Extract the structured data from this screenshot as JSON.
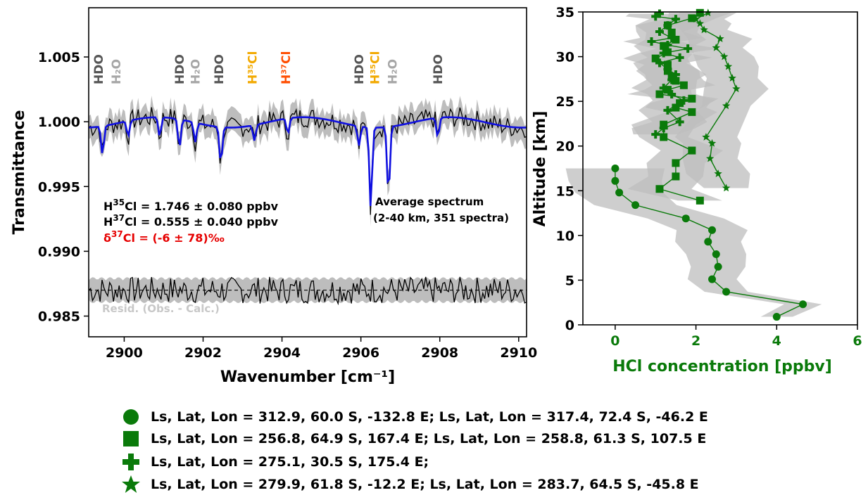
{
  "colors": {
    "fit": "#1010e0",
    "obs": "#000000",
    "band": "#bdbdbd",
    "hcl": "#0a7a0a",
    "hdo": "#555555",
    "h2o": "#a6a6a6",
    "h35cl": "#f2a900",
    "h37cl": "#ff4d00",
    "delta": "#e60000",
    "resid_label": "#c8c8c8"
  },
  "chart_data": [
    {
      "type": "line",
      "name_hint": "spectrum",
      "xlabel": "Wavenumber [cm⁻¹]",
      "ylabel": "Transmittance",
      "xlim": [
        2899.1,
        2910.2
      ],
      "ylim": [
        0.9834,
        1.0088
      ],
      "xticks": [
        2900,
        2902,
        2904,
        2906,
        2908,
        2910
      ],
      "yticks": [
        0.985,
        0.99,
        0.995,
        1.0,
        1.005
      ],
      "ytick_labels": [
        "0.985",
        "0.990",
        "0.995",
        "1.000",
        "1.005"
      ],
      "line_labels": [
        {
          "text": "HDO",
          "x": 2899.35,
          "species": "hdo"
        },
        {
          "text": "H₂O",
          "x": 2899.8,
          "species": "h2o"
        },
        {
          "text": "HDO",
          "x": 2901.4,
          "species": "hdo"
        },
        {
          "text": "H₂O",
          "x": 2901.8,
          "species": "h2o"
        },
        {
          "text": "HDO",
          "x": 2902.4,
          "species": "hdo"
        },
        {
          "text": "H³⁵Cl",
          "x": 2903.25,
          "species": "h35cl"
        },
        {
          "text": "H³⁷Cl",
          "x": 2904.1,
          "species": "h37cl"
        },
        {
          "text": "HDO",
          "x": 2905.95,
          "species": "hdo"
        },
        {
          "text": "H³⁵Cl",
          "x": 2906.35,
          "species": "h35cl"
        },
        {
          "text": "H₂O",
          "x": 2906.8,
          "species": "h2o"
        },
        {
          "text": "HDO",
          "x": 2907.95,
          "species": "hdo"
        }
      ],
      "features": [
        {
          "x": 2899.45,
          "depth": 0.0022,
          "width": 0.05
        },
        {
          "x": 2900.1,
          "depth": 0.0012,
          "width": 0.05
        },
        {
          "x": 2900.9,
          "depth": 0.0015,
          "width": 0.05
        },
        {
          "x": 2901.4,
          "depth": 0.0022,
          "width": 0.05
        },
        {
          "x": 2901.8,
          "depth": 0.0015,
          "width": 0.05
        },
        {
          "x": 2902.45,
          "depth": 0.0028,
          "width": 0.05
        },
        {
          "x": 2903.3,
          "depth": 0.0012,
          "width": 0.05
        },
        {
          "x": 2904.15,
          "depth": 0.0012,
          "width": 0.05
        },
        {
          "x": 2905.95,
          "depth": 0.0015,
          "width": 0.05
        },
        {
          "x": 2906.25,
          "depth": 0.0062,
          "width": 0.05
        },
        {
          "x": 2906.7,
          "depth": 0.0052,
          "width": 0.05
        },
        {
          "x": 2907.95,
          "depth": 0.0015,
          "width": 0.05
        }
      ],
      "residual_offset": 0.987,
      "annotations": {
        "h35_prefix": "H",
        "h35_sup": "35",
        "h35_rest": "Cl = 1.746 ± 0.080 ppbv",
        "h37_prefix": "H",
        "h37_sup": "37",
        "h37_rest": "Cl = 0.555 ± 0.040 ppbv",
        "delta_prefix": "δ",
        "delta_sup": "37",
        "delta_rest": "Cl = (-6 ± 78)‰",
        "avg_line1": "Average spectrum",
        "avg_line2": "(2-40 km, 351 spectra)",
        "resid": "Resid. (Obs. - Calc.)"
      }
    },
    {
      "type": "line",
      "name_hint": "profile",
      "xlabel": "HCl concentration [ppbv]",
      "ylabel": "Altitude [km]",
      "xlim": [
        -0.8,
        6
      ],
      "ylim": [
        0,
        35
      ],
      "xticks": [
        0,
        2,
        4,
        6
      ],
      "yticks": [
        0,
        5,
        10,
        15,
        20,
        25,
        30,
        35
      ],
      "series": [
        {
          "marker": "circle",
          "x": [
            4.0,
            4.65,
            2.75,
            2.4,
            2.55,
            2.5,
            2.3,
            2.4,
            1.75,
            0.5,
            0.1,
            0.0,
            0.0
          ],
          "y": [
            0.9,
            2.3,
            3.7,
            5.1,
            6.5,
            7.9,
            9.3,
            10.6,
            11.9,
            13.4,
            14.8,
            16.1,
            17.5
          ]
        },
        {
          "marker": "square",
          "x": [
            2.1,
            1.1,
            1.5,
            1.5,
            1.9,
            1.2,
            1.2,
            1.9,
            1.5,
            1.6,
            1.9,
            1.1,
            1.3,
            1.7,
            1.5,
            1.4,
            1.3,
            1.3,
            1.0,
            1.3,
            1.2,
            1.5,
            1.4,
            1.3,
            1.9,
            2.1
          ],
          "y": [
            13.9,
            15.2,
            16.6,
            18.1,
            19.5,
            21.0,
            22.4,
            23.8,
            24.3,
            24.8,
            25.3,
            25.8,
            26.3,
            26.8,
            27.3,
            27.8,
            28.4,
            29.1,
            29.8,
            30.5,
            31.2,
            31.9,
            32.7,
            33.5,
            34.3,
            34.9
          ]
        },
        {
          "marker": "plus",
          "x": [
            1.0,
            1.2,
            1.6,
            1.3,
            1.7,
            1.4,
            1.2,
            1.4,
            1.5,
            1.3,
            1.1,
            1.6,
            1.2,
            1.8,
            1.3,
            0.9,
            1.4,
            1.1,
            1.3,
            1.5,
            1.0,
            1.1
          ],
          "y": [
            21.3,
            22.0,
            22.7,
            24.0,
            25.1,
            25.8,
            26.5,
            27.4,
            28.0,
            28.6,
            29.3,
            29.9,
            30.4,
            30.9,
            31.3,
            31.7,
            32.1,
            32.8,
            33.5,
            34.2,
            34.5,
            34.8
          ]
        },
        {
          "marker": "star",
          "x": [
            2.75,
            2.55,
            2.35,
            2.4,
            2.25,
            2.75,
            3.0,
            2.9,
            2.8,
            2.7,
            2.5,
            2.6,
            2.2,
            2.1,
            2.0,
            2.3
          ],
          "y": [
            15.3,
            16.9,
            18.6,
            20.3,
            21.0,
            24.5,
            26.4,
            27.6,
            28.9,
            30.0,
            31.0,
            32.0,
            33.0,
            33.7,
            34.2,
            34.9
          ]
        }
      ]
    }
  ],
  "legend": [
    {
      "symbol": "circle",
      "text": "Ls, Lat, Lon = 312.9, 60.0 S, -132.8 E;   Ls, Lat, Lon = 317.4, 72.4 S,  -46.2 E"
    },
    {
      "symbol": "square",
      "text": "Ls, Lat, Lon = 256.8, 64.9 S,  167.4 E;    Ls, Lat, Lon = 258.8, 61.3 S, 107.5 E"
    },
    {
      "symbol": "plus",
      "text": "Ls, Lat, Lon = 275.1, 30.5 S,  175.4 E;"
    },
    {
      "symbol": "star",
      "text": "Ls, Lat, Lon = 279.9, 61.8 S,   -12.2 E;   Ls, Lat, Lon = 283.7, 64.5 S,  -45.8 E"
    }
  ]
}
